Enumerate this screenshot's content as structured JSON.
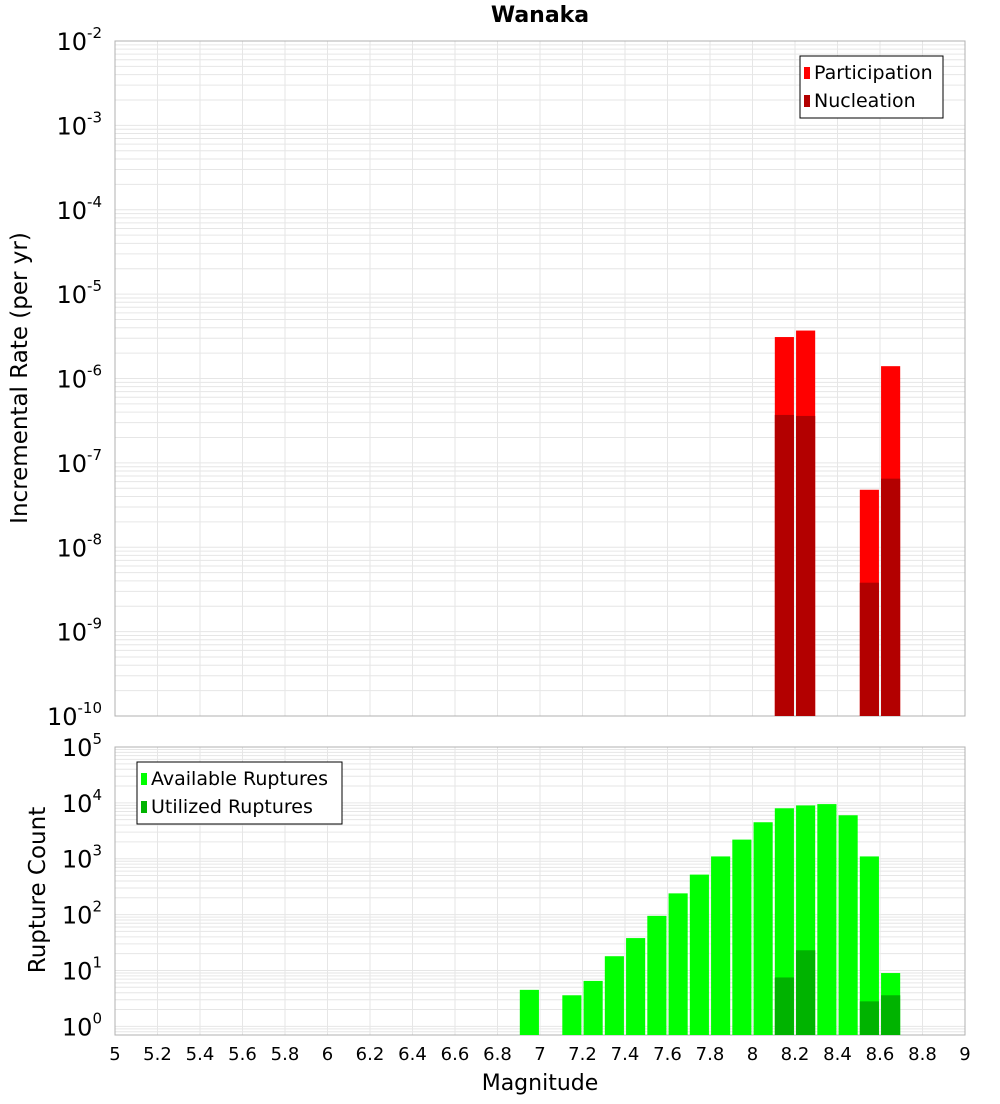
{
  "title": "Wanaka",
  "xlabel": "Magnitude",
  "colors": {
    "participation": "#ff0000",
    "nucleation": "#b30000",
    "available": "#00ff00",
    "utilized": "#00b300",
    "grid": "#e6e6e6",
    "frame": "#b0b0b0"
  },
  "chart_data": [
    {
      "type": "bar",
      "title": "Wanaka",
      "xlabel": "",
      "ylabel": "Incremental Rate (per yr)",
      "yscale": "log",
      "xlim": [
        5,
        9
      ],
      "ylim": [
        1e-10,
        0.01
      ],
      "legend_position": "top-right",
      "x_ticks": [
        5,
        5.2,
        5.4,
        5.6,
        5.8,
        6,
        6.2,
        6.4,
        6.6,
        6.8,
        7,
        7.2,
        7.4,
        7.6,
        7.8,
        8,
        8.2,
        8.4,
        8.6,
        8.8,
        9
      ],
      "y_tick_exponents": [
        -2,
        -3,
        -4,
        -5,
        -6,
        -7,
        -8,
        -9,
        -10
      ],
      "series": [
        {
          "name": "Participation",
          "x": [
            8.15,
            8.25,
            8.55,
            8.65
          ],
          "values": [
            3.1e-06,
            3.7e-06,
            4.8e-08,
            1.4e-06
          ]
        },
        {
          "name": "Nucleation",
          "x": [
            8.15,
            8.25,
            8.55,
            8.65
          ],
          "values": [
            3.7e-07,
            3.6e-07,
            3.8e-09,
            6.5e-08
          ]
        }
      ]
    },
    {
      "type": "bar",
      "title": "",
      "xlabel": "Magnitude",
      "ylabel": "Rupture Count",
      "yscale": "log",
      "xlim": [
        5,
        9
      ],
      "ylim": [
        0.7,
        100000.0
      ],
      "legend_position": "top-left",
      "y_tick_exponents": [
        5,
        4,
        3,
        2,
        1,
        0
      ],
      "series": [
        {
          "name": "Available Ruptures",
          "x": [
            6.95,
            7.15,
            7.25,
            7.35,
            7.45,
            7.55,
            7.65,
            7.75,
            7.85,
            7.95,
            8.05,
            8.15,
            8.25,
            8.35,
            8.45,
            8.55,
            8.65
          ],
          "values": [
            4.5,
            3.6,
            6.5,
            18,
            38,
            95,
            240,
            520,
            1100,
            2200,
            4500,
            8000,
            9000,
            9500,
            6000,
            1100,
            9
          ]
        },
        {
          "name": "Utilized Ruptures",
          "x": [
            8.15,
            8.25,
            8.55,
            8.65
          ],
          "values": [
            7.5,
            23,
            2.8,
            3.6
          ]
        }
      ]
    }
  ]
}
